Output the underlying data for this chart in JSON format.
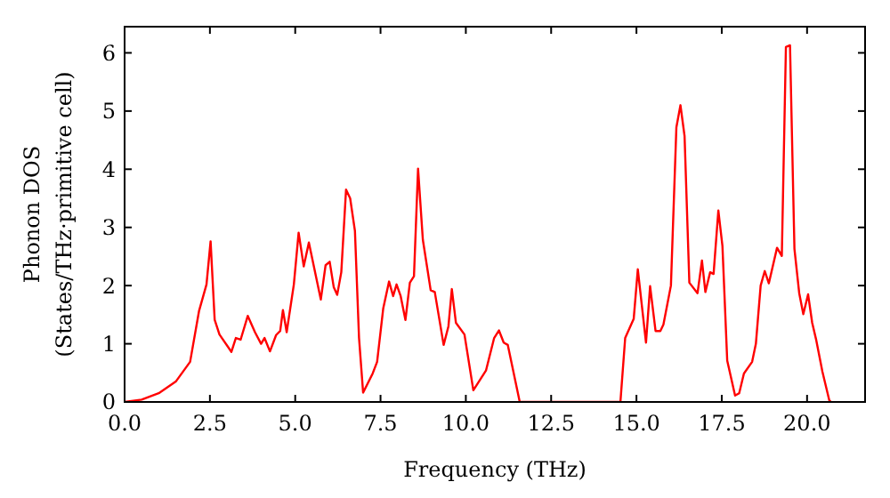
{
  "chart_data": {
    "type": "line",
    "xlabel": "Frequency (THz)",
    "ylabel": "Phonon DOS\n(States/THz·primitive cell)",
    "xlim": [
      0,
      21.7
    ],
    "ylim": [
      0,
      6.45
    ],
    "xticks": [
      {
        "value": 0,
        "label": "0.0"
      },
      {
        "value": 2.5,
        "label": "2.5"
      },
      {
        "value": 5,
        "label": "5.0"
      },
      {
        "value": 7.5,
        "label": "7.5"
      },
      {
        "value": 10,
        "label": "10.0"
      },
      {
        "value": 12.5,
        "label": "12.5"
      },
      {
        "value": 15,
        "label": "15.0"
      },
      {
        "value": 17.5,
        "label": "17.5"
      },
      {
        "value": 20,
        "label": "20.0"
      }
    ],
    "yticks": [
      0,
      1,
      2,
      3,
      4,
      5,
      6
    ],
    "grid": false,
    "marker": "none",
    "line_style": "solid",
    "series": [
      {
        "color": "#ff0000",
        "x": [
          0,
          0.5,
          1,
          1.5,
          1.92,
          2.18,
          2.4,
          2.52,
          2.64,
          2.78,
          3.13,
          3.26,
          3.4,
          3.61,
          3.82,
          4,
          4.1,
          4.26,
          4.44,
          4.56,
          4.64,
          4.75,
          4.96,
          5.1,
          5.25,
          5.4,
          5.75,
          5.89,
          6.01,
          6.13,
          6.23,
          6.35,
          6.49,
          6.61,
          6.75,
          6.87,
          6.99,
          7.27,
          7.4,
          7.58,
          7.75,
          7.87,
          7.97,
          8.09,
          8.23,
          8.36,
          8.48,
          8.6,
          8.74,
          8.97,
          9.09,
          9.35,
          9.49,
          9.59,
          9.71,
          9.96,
          10.22,
          10.59,
          10.83,
          10.97,
          11.11,
          11.23,
          11.58,
          14.53,
          14.67,
          14.92,
          15.04,
          15.28,
          15.4,
          15.56,
          15.7,
          15.79,
          16.01,
          16.17,
          16.29,
          16.41,
          16.55,
          16.79,
          16.92,
          17.02,
          17.16,
          17.26,
          17.4,
          17.52,
          17.66,
          17.89,
          18.01,
          18.15,
          18.39,
          18.5,
          18.64,
          18.76,
          18.88,
          19.12,
          19.26,
          19.38,
          19.5,
          19.63,
          19.77,
          19.89,
          20.03,
          20.15,
          20.27,
          20.45,
          20.65,
          20.7
        ],
        "values": [
          0,
          0.04,
          0.15,
          0.35,
          0.69,
          1.56,
          2.02,
          2.76,
          1.41,
          1.16,
          0.86,
          1.1,
          1.07,
          1.48,
          1.2,
          1,
          1.1,
          0.87,
          1.15,
          1.22,
          1.58,
          1.2,
          2.02,
          2.91,
          2.33,
          2.74,
          1.76,
          2.35,
          2.41,
          1.97,
          1.84,
          2.23,
          3.65,
          3.5,
          2.94,
          1.1,
          0.16,
          0.49,
          0.69,
          1.61,
          2.07,
          1.82,
          2.02,
          1.82,
          1.41,
          2.05,
          2.16,
          4.01,
          2.79,
          1.92,
          1.89,
          0.98,
          1.3,
          1.94,
          1.36,
          1.16,
          0.2,
          0.54,
          1.1,
          1.23,
          1.02,
          0.98,
          0,
          0,
          1.1,
          1.43,
          2.28,
          1.02,
          1.99,
          1.22,
          1.22,
          1.33,
          2,
          4.72,
          5.1,
          4.57,
          2.05,
          1.87,
          2.43,
          1.89,
          2.23,
          2.2,
          3.29,
          2.68,
          0.71,
          0.11,
          0.15,
          0.49,
          0.69,
          1,
          2,
          2.25,
          2.04,
          2.65,
          2.51,
          6.1,
          6.13,
          2.63,
          1.87,
          1.51,
          1.85,
          1.36,
          1.06,
          0.52,
          0.03,
          0
        ]
      }
    ]
  }
}
